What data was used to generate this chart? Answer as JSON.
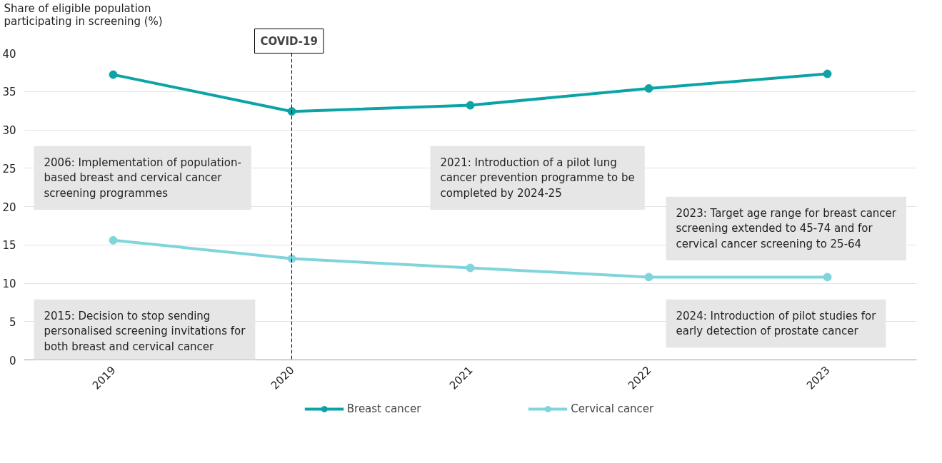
{
  "chart_data": {
    "type": "line",
    "ylabel": "Share of eligible population participating in screening (%)",
    "categories": [
      "2019",
      "2020",
      "2021",
      "2022",
      "2023"
    ],
    "series": [
      {
        "name": "Breast cancer",
        "color": "#0ca3a7",
        "values": [
          37.2,
          32.4,
          33.2,
          35.4,
          37.3
        ]
      },
      {
        "name": "Cervical cancer",
        "color": "#7fd5db",
        "values": [
          15.6,
          13.2,
          12.0,
          10.8,
          10.8
        ]
      }
    ],
    "ylim": [
      0,
      40
    ],
    "yticks": [
      0,
      5,
      10,
      15,
      20,
      25,
      30,
      35,
      40
    ],
    "ref_lines": [
      {
        "axis": "x",
        "value": "2020",
        "label": "COVID-19",
        "line_style": "dashed",
        "color": "#000000"
      }
    ],
    "annotations": [
      "2006: Implementation of population-based breast and cervical cancer screening programmes",
      "2021: Introduction of a pilot lung cancer prevention programme to be completed by 2024-25",
      "2023: Target age range for breast cancer screening extended to 45-74 and for cervical cancer screening to 25-64",
      "2015: Decision to stop sending personalised screening invitations for both breast and cervical cancer",
      "2024: Introduction of pilot studies for early detection of prostate cancer"
    ],
    "grid": "y",
    "legend": "bottom",
    "marker": "circle",
    "line_style": "solid"
  }
}
